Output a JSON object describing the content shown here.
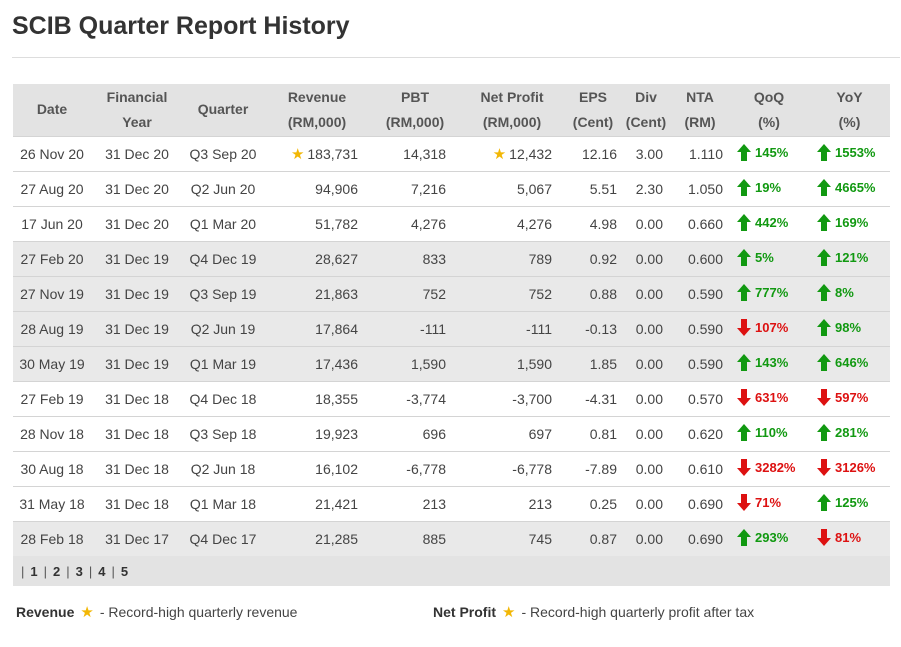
{
  "title": "SCIB Quarter Report History",
  "headers": [
    [
      "Date"
    ],
    [
      "Financial",
      "Year"
    ],
    [
      "Quarter"
    ],
    [
      "Revenue",
      "(RM,000)"
    ],
    [
      "PBT",
      "(RM,000)"
    ],
    [
      "Net Profit",
      "(RM,000)"
    ],
    [
      "EPS",
      "(Cent)"
    ],
    [
      "Div",
      "(Cent)"
    ],
    [
      "NTA",
      "(RM)"
    ],
    [
      "QoQ",
      "(%)"
    ],
    [
      "YoY",
      "(%)"
    ]
  ],
  "rows": [
    {
      "date": "26 Nov 20",
      "fy": "31 Dec 20",
      "quarter": "Q3 Sep 20",
      "revenue": "183,731",
      "revenue_star": true,
      "pbt": "14,318",
      "np": "12,432",
      "np_star": true,
      "eps": "12.16",
      "div": "3.00",
      "nta": "1.110",
      "qoq": "145%",
      "qoq_dir": "up",
      "yoy": "1553%",
      "yoy_dir": "up",
      "shade": "w"
    },
    {
      "date": "27 Aug 20",
      "fy": "31 Dec 20",
      "quarter": "Q2 Jun 20",
      "revenue": "94,906",
      "revenue_star": false,
      "pbt": "7,216",
      "np": "5,067",
      "np_star": false,
      "eps": "5.51",
      "div": "2.30",
      "nta": "1.050",
      "qoq": "19%",
      "qoq_dir": "up",
      "yoy": "4665%",
      "yoy_dir": "up",
      "shade": "w"
    },
    {
      "date": "17 Jun 20",
      "fy": "31 Dec 20",
      "quarter": "Q1 Mar 20",
      "revenue": "51,782",
      "revenue_star": false,
      "pbt": "4,276",
      "np": "4,276",
      "np_star": false,
      "eps": "4.98",
      "div": "0.00",
      "nta": "0.660",
      "qoq": "442%",
      "qoq_dir": "up",
      "yoy": "169%",
      "yoy_dir": "up",
      "shade": "w"
    },
    {
      "date": "27 Feb 20",
      "fy": "31 Dec 19",
      "quarter": "Q4 Dec 19",
      "revenue": "28,627",
      "revenue_star": false,
      "pbt": "833",
      "np": "789",
      "np_star": false,
      "eps": "0.92",
      "div": "0.00",
      "nta": "0.600",
      "qoq": "5%",
      "qoq_dir": "up",
      "yoy": "121%",
      "yoy_dir": "up",
      "shade": "g"
    },
    {
      "date": "27 Nov 19",
      "fy": "31 Dec 19",
      "quarter": "Q3 Sep 19",
      "revenue": "21,863",
      "revenue_star": false,
      "pbt": "752",
      "np": "752",
      "np_star": false,
      "eps": "0.88",
      "div": "0.00",
      "nta": "0.590",
      "qoq": "777%",
      "qoq_dir": "up",
      "yoy": "8%",
      "yoy_dir": "up",
      "shade": "g"
    },
    {
      "date": "28 Aug 19",
      "fy": "31 Dec 19",
      "quarter": "Q2 Jun 19",
      "revenue": "17,864",
      "revenue_star": false,
      "pbt": "-111",
      "np": "-111",
      "np_star": false,
      "eps": "-0.13",
      "div": "0.00",
      "nta": "0.590",
      "qoq": "107%",
      "qoq_dir": "down",
      "yoy": "98%",
      "yoy_dir": "up",
      "shade": "g"
    },
    {
      "date": "30 May 19",
      "fy": "31 Dec 19",
      "quarter": "Q1 Mar 19",
      "revenue": "17,436",
      "revenue_star": false,
      "pbt": "1,590",
      "np": "1,590",
      "np_star": false,
      "eps": "1.85",
      "div": "0.00",
      "nta": "0.590",
      "qoq": "143%",
      "qoq_dir": "up",
      "yoy": "646%",
      "yoy_dir": "up",
      "shade": "g"
    },
    {
      "date": "27 Feb 19",
      "fy": "31 Dec 18",
      "quarter": "Q4 Dec 18",
      "revenue": "18,355",
      "revenue_star": false,
      "pbt": "-3,774",
      "np": "-3,700",
      "np_star": false,
      "eps": "-4.31",
      "div": "0.00",
      "nta": "0.570",
      "qoq": "631%",
      "qoq_dir": "down",
      "yoy": "597%",
      "yoy_dir": "down",
      "shade": "w"
    },
    {
      "date": "28 Nov 18",
      "fy": "31 Dec 18",
      "quarter": "Q3 Sep 18",
      "revenue": "19,923",
      "revenue_star": false,
      "pbt": "696",
      "np": "697",
      "np_star": false,
      "eps": "0.81",
      "div": "0.00",
      "nta": "0.620",
      "qoq": "110%",
      "qoq_dir": "up",
      "yoy": "281%",
      "yoy_dir": "up",
      "shade": "w"
    },
    {
      "date": "30 Aug 18",
      "fy": "31 Dec 18",
      "quarter": "Q2 Jun 18",
      "revenue": "16,102",
      "revenue_star": false,
      "pbt": "-6,778",
      "np": "-6,778",
      "np_star": false,
      "eps": "-7.89",
      "div": "0.00",
      "nta": "0.610",
      "qoq": "3282%",
      "qoq_dir": "down",
      "yoy": "3126%",
      "yoy_dir": "down",
      "shade": "w"
    },
    {
      "date": "31 May 18",
      "fy": "31 Dec 18",
      "quarter": "Q1 Mar 18",
      "revenue": "21,421",
      "revenue_star": false,
      "pbt": "213",
      "np": "213",
      "np_star": false,
      "eps": "0.25",
      "div": "0.00",
      "nta": "0.690",
      "qoq": "71%",
      "qoq_dir": "down",
      "yoy": "125%",
      "yoy_dir": "up",
      "shade": "w"
    },
    {
      "date": "28 Feb 18",
      "fy": "31 Dec 17",
      "quarter": "Q4 Dec 17",
      "revenue": "21,285",
      "revenue_star": false,
      "pbt": "885",
      "np": "745",
      "np_star": false,
      "eps": "0.87",
      "div": "0.00",
      "nta": "0.690",
      "qoq": "293%",
      "qoq_dir": "up",
      "yoy": "81%",
      "yoy_dir": "down",
      "shade": "g"
    }
  ],
  "pagination": {
    "pages": [
      "1",
      "2",
      "3",
      "4",
      "5"
    ],
    "current": "1"
  },
  "legend": {
    "revenue_label": "Revenue",
    "revenue_text": "- Record-high quarterly revenue",
    "profit_label": "Net Profit",
    "profit_text": "- Record-high quarterly profit after tax"
  },
  "colors": {
    "up": "#119911",
    "down": "#dd1111",
    "star": "#f2b705",
    "header_bg": "#e3e3e3"
  },
  "icons": {
    "star": "star-icon",
    "up": "arrow-up-icon",
    "down": "arrow-down-icon"
  }
}
